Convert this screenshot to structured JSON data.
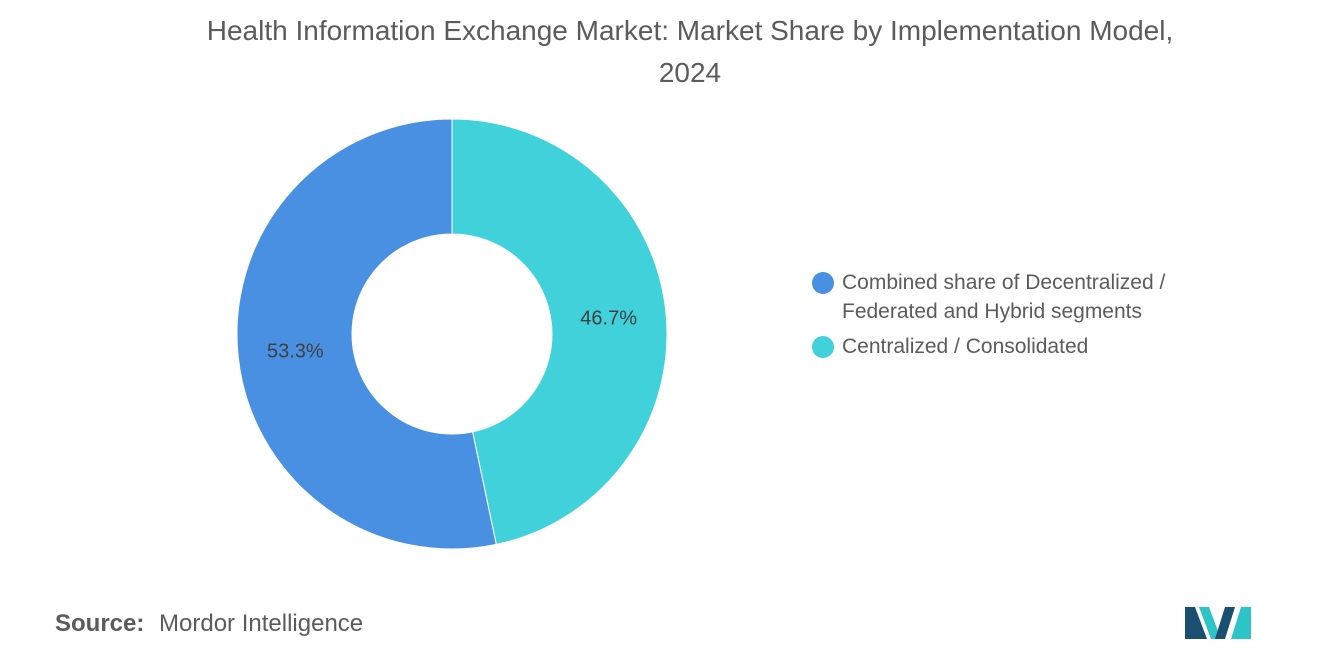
{
  "chart_data": {
    "type": "pie",
    "donut": true,
    "title": "Health Information Exchange Market: Market Share by Implementation Model, 2024",
    "categories": [
      "Combined share of Decentralized / Federated and Hybrid segments",
      "Centralized / Consolidated"
    ],
    "values": [
      53.3,
      46.7
    ],
    "value_labels": [
      "53.3%",
      "46.7%"
    ],
    "unit": "%",
    "colors": [
      "#4a90e2",
      "#41d1db"
    ],
    "legend_position": "right"
  },
  "legend": {
    "items": [
      {
        "label_line1": "Combined share of Decentralized /",
        "label_line2": "Federated and Hybrid segments",
        "color": "#4a90e2"
      },
      {
        "label_line1": "Centralized / Consolidated",
        "label_line2": "",
        "color": "#41d1db"
      }
    ]
  },
  "title_line1": "Health Information Exchange Market: Market Share by Implementation Model,",
  "title_line2": "2024",
  "source": {
    "label": "Source:",
    "value": "Mordor Intelligence"
  },
  "logo": {
    "icon": "mordor-intelligence-logo-icon",
    "colors": [
      "#1b4f72",
      "#2ec4c7"
    ]
  }
}
